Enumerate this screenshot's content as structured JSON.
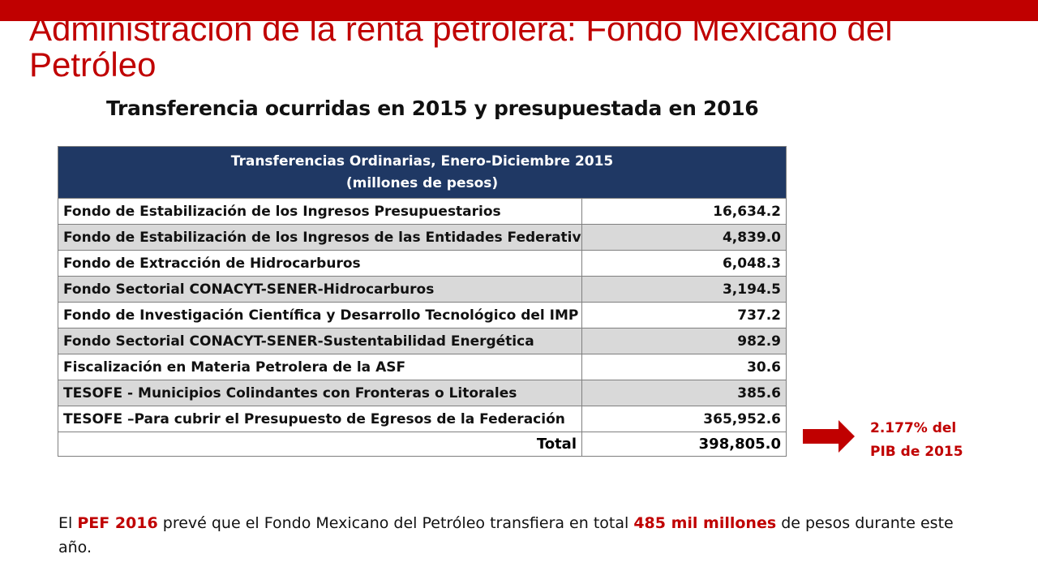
{
  "slide": {
    "title": "Administración de la renta petrolera: Fondo Mexicano del Petróleo",
    "subtitle": "Transferencia ocurridas en 2015  y presupuestada en 2016"
  },
  "table": {
    "header_line1": "Transferencias Ordinarias, Enero-Diciembre 2015",
    "header_line2": "(millones de pesos)",
    "rows": [
      {
        "label": "Fondo de Estabilización de los Ingresos Presupuestarios",
        "value": "16,634.2"
      },
      {
        "label": "Fondo de Estabilización de los Ingresos de las Entidades Federativas",
        "value": "4,839.0"
      },
      {
        "label": "Fondo de Extracción de Hidrocarburos",
        "value": "6,048.3"
      },
      {
        "label": "Fondo Sectorial CONACYT-SENER-Hidrocarburos",
        "value": "3,194.5"
      },
      {
        "label": "Fondo de Investigación Científica y Desarrollo Tecnológico del IMP",
        "value": "737.2"
      },
      {
        "label": "Fondo Sectorial CONACYT-SENER-Sustentabilidad Energética",
        "value": "982.9"
      },
      {
        "label": "Fiscalización en Materia Petrolera de la ASF",
        "value": "30.6"
      },
      {
        "label": "TESOFE - Municipios Colindantes con Fronteras o Litorales",
        "value": "385.6"
      },
      {
        "label": "TESOFE –Para cubrir el Presupuesto de Egresos de la Federación",
        "value": "365,952.6"
      }
    ],
    "total_label": "Total",
    "total_value": "398,805.0"
  },
  "note": {
    "line1": "2.177% del",
    "line2": "PIB de 2015"
  },
  "bottom": {
    "part1": "El ",
    "pef": "PEF 2016",
    "part2": " prevé que el Fondo Mexicano del Petróleo transfiera en total ",
    "amount": "485 mil millones",
    "part3": " de pesos durante este año."
  },
  "colors": {
    "accent_red": "#c00000",
    "header_navy": "#1f3864",
    "row_alt_gray": "#d9d9d9"
  },
  "icons": {
    "arrow": "right-arrow-icon"
  }
}
